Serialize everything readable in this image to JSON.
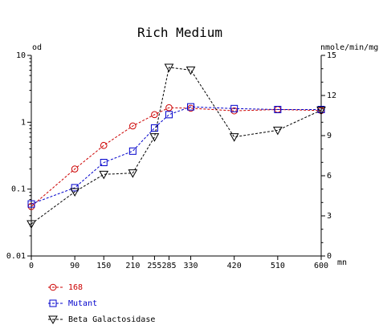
{
  "chart_data": {
    "type": "line",
    "title": "Rich Medium",
    "x": [
      0,
      90,
      150,
      210,
      255,
      285,
      330,
      420,
      510,
      600
    ],
    "x_tick_labels": [
      "0",
      "90",
      "150",
      "210",
      "255",
      "285",
      "330",
      "420",
      "510",
      "600"
    ],
    "x_unit": "mn",
    "xlim": [
      0,
      600
    ],
    "y_left": {
      "unit": "od",
      "scale": "log",
      "lim": [
        0.01,
        10
      ],
      "tick_labels": [
        "0.01",
        "0.1",
        "1",
        "10"
      ],
      "ticks": [
        0.01,
        0.1,
        1,
        10
      ]
    },
    "y_right": {
      "unit": "nmole/min/mg",
      "scale": "linear",
      "lim": [
        0,
        15
      ],
      "tick_labels": [
        "0",
        "3",
        "6",
        "9",
        "12",
        "15"
      ],
      "ticks": [
        0,
        3,
        6,
        9,
        12,
        15
      ]
    },
    "series": [
      {
        "name": "168",
        "axis": "left",
        "color": "#cc0000",
        "marker": "circle",
        "x": [
          0,
          90,
          150,
          210,
          255,
          285,
          330,
          420,
          510,
          600
        ],
        "values": [
          0.055,
          0.2,
          0.45,
          0.88,
          1.3,
          1.65,
          1.62,
          1.48,
          1.55,
          1.5
        ]
      },
      {
        "name": "Mutant",
        "axis": "left",
        "color": "#0000cc",
        "marker": "square",
        "x": [
          0,
          90,
          150,
          210,
          255,
          285,
          330,
          420,
          510,
          600
        ],
        "values": [
          0.06,
          0.105,
          0.25,
          0.37,
          0.82,
          1.3,
          1.7,
          1.6,
          1.55,
          1.55
        ]
      },
      {
        "name": "Beta Galactosidase",
        "axis": "right",
        "color": "#000000",
        "marker": "triangle-down",
        "x": [
          0,
          90,
          150,
          210,
          255,
          285,
          330,
          420,
          510,
          600
        ],
        "values": [
          2.4,
          4.8,
          6.1,
          6.2,
          8.9,
          14.1,
          13.9,
          8.9,
          9.4,
          10.9
        ]
      }
    ],
    "legend_position": "bottom-left",
    "grid": false
  }
}
